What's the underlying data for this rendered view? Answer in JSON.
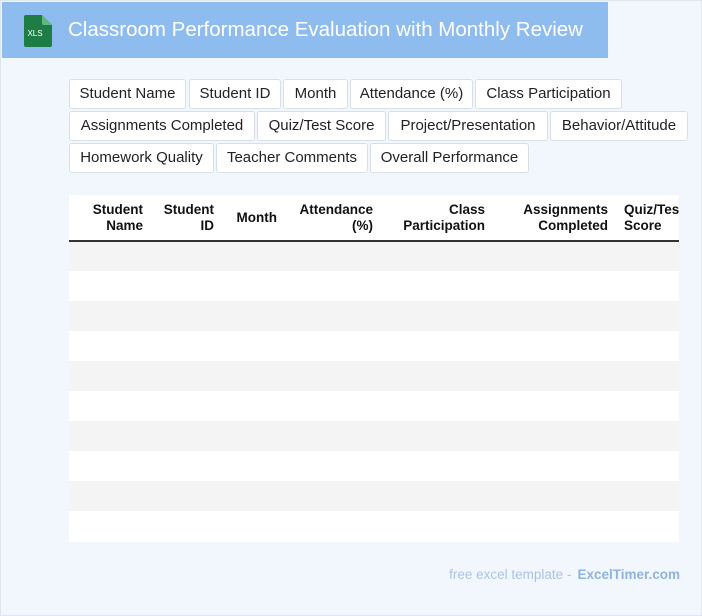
{
  "header": {
    "title": "Classroom Performance Evaluation with Monthly Review",
    "icon": "xls-file-icon",
    "icon_label": "XLS",
    "bg_color": "#8fbcee",
    "icon_color": "#1e7d45"
  },
  "tags": [
    "Student Name",
    "Student ID",
    "Month",
    "Attendance (%)",
    "Class Participation",
    "Assignments Completed",
    "Quiz/Test Score",
    "Project/Presentation",
    "Behavior/Attitude",
    "Homework Quality",
    "Teacher Comments",
    "Overall Performance"
  ],
  "table": {
    "columns": [
      [
        "Student",
        "Name"
      ],
      [
        "Student",
        "ID"
      ],
      [
        "Month",
        ""
      ],
      [
        "Attendance",
        "(%)"
      ],
      [
        "Class",
        "Participation"
      ],
      [
        "Assignments",
        "Completed"
      ],
      [
        "Quiz/Test",
        "Score"
      ]
    ],
    "row_count": 10
  },
  "footer": {
    "text": "free excel template -",
    "brand": "ExcelTimer.com"
  }
}
